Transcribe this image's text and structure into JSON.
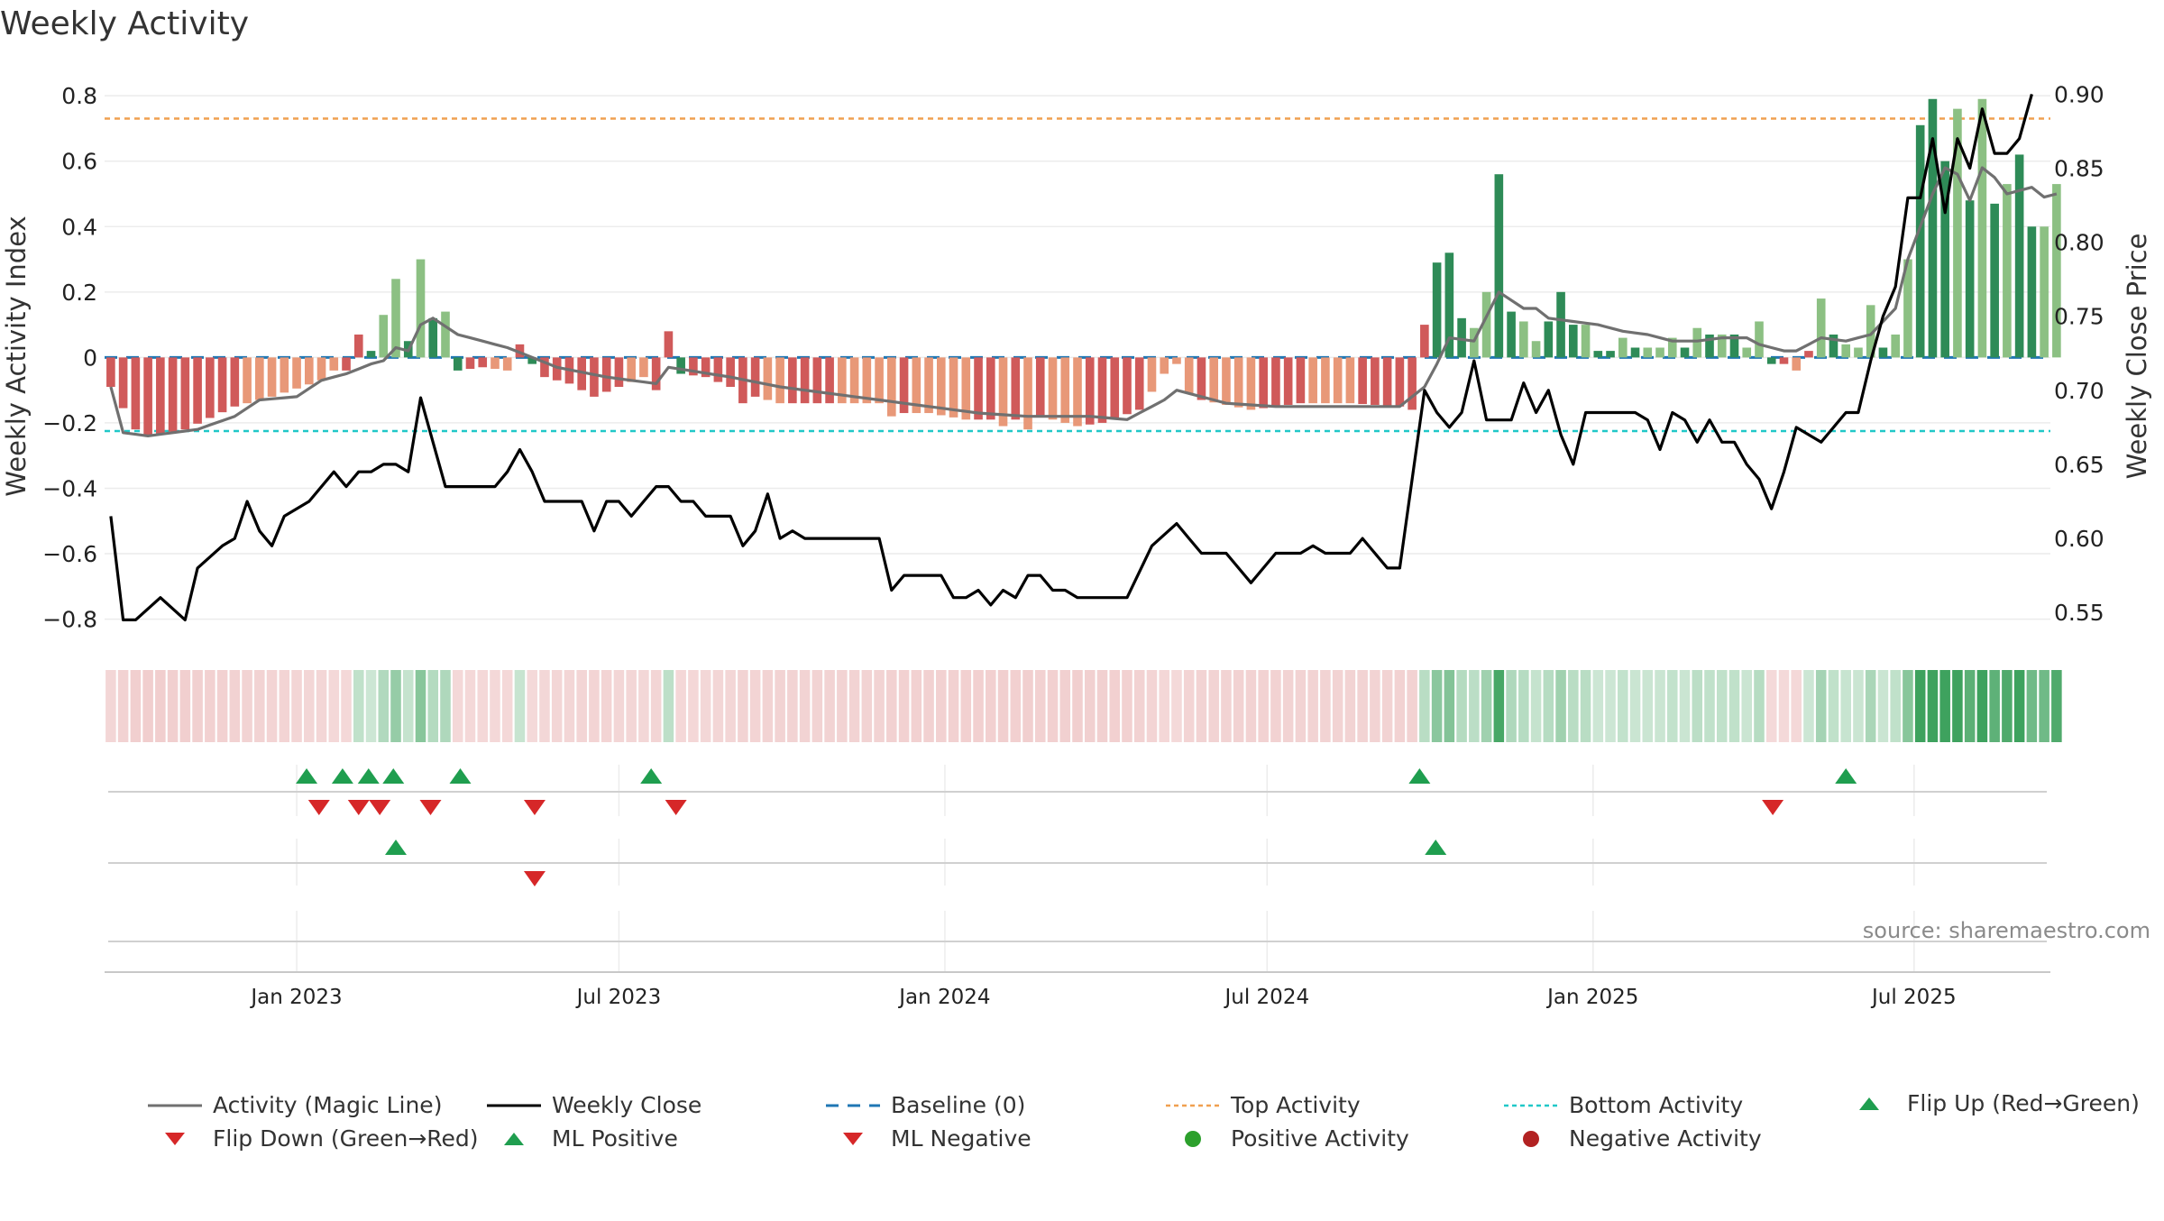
{
  "chart_data": {
    "type": "bar",
    "title": "Weekly Activity",
    "source_note": "source: sharemaestro.com",
    "left_axis": {
      "label": "Weekly Activity Index",
      "ylim": [
        -0.87,
        0.85
      ],
      "ticks": [
        0.8,
        0.6,
        0.4,
        0.2,
        0,
        -0.2,
        -0.4,
        -0.6,
        -0.8
      ],
      "tick_labels": [
        "0.8",
        "0.6",
        "0.4",
        "0.2",
        "0",
        "−0.2",
        "−0.4",
        "−0.6",
        "−0.8"
      ]
    },
    "right_axis": {
      "label": "Weekly Close Price",
      "ylim": [
        0.53,
        0.91
      ],
      "ticks": [
        0.9,
        0.85,
        0.8,
        0.75,
        0.7,
        0.65,
        0.6,
        0.55
      ],
      "tick_labels": [
        "0.90",
        "0.85",
        "0.80",
        "0.75",
        "0.70",
        "0.65",
        "0.60",
        "0.55"
      ]
    },
    "x_axis": {
      "tick_labels": [
        "Jan 2023",
        "Jul 2023",
        "Jan 2024",
        "Jul 2024",
        "Jan 2025",
        "Jul 2025"
      ],
      "tick_weeks": [
        15,
        41,
        67.3,
        93.3,
        119.6,
        145.5
      ],
      "n_weeks": 157
    },
    "thresholds": {
      "top_activity": 0.73,
      "bottom_activity": -0.225,
      "baseline": 0
    },
    "colors": {
      "strong_pos": "#2e8b57",
      "light_pos": "#8cc083",
      "strong_neg": "#d05a5a",
      "light_neg": "#e89878",
      "magic_line": "#707070",
      "close_line": "#000000",
      "baseline": "#1f77b4",
      "top_line": "#f0a050",
      "bottom_line": "#20c8c8",
      "marker_up": "#1f9e4f",
      "marker_down": "#d62728",
      "pos_dot": "#2ca02c",
      "neg_dot": "#b22222"
    },
    "activity_keys": [
      [
        0,
        -0.09,
        1
      ],
      [
        2,
        -0.22,
        1
      ],
      [
        3,
        -0.24,
        1
      ],
      [
        6,
        -0.22,
        1
      ],
      [
        10,
        -0.15,
        0
      ],
      [
        13,
        -0.12,
        0
      ],
      [
        17,
        -0.07,
        0
      ],
      [
        18,
        -0.04,
        1
      ],
      [
        19,
        -0.04,
        1
      ],
      [
        20,
        0.07,
        2
      ],
      [
        21,
        0.02,
        3
      ],
      [
        23,
        0.24,
        2
      ],
      [
        24,
        0.05,
        3
      ],
      [
        25,
        0.3,
        2
      ],
      [
        26,
        0.12,
        3
      ],
      [
        27,
        0.14,
        2
      ],
      [
        28,
        -0.04,
        1
      ],
      [
        30,
        -0.03,
        0
      ],
      [
        32,
        -0.04,
        1
      ],
      [
        33,
        0.04,
        2
      ],
      [
        34,
        -0.02,
        1
      ],
      [
        35,
        -0.06,
        1
      ],
      [
        37,
        -0.08,
        1
      ],
      [
        39,
        -0.12,
        1
      ],
      [
        41,
        -0.09,
        0
      ],
      [
        43,
        -0.06,
        1
      ],
      [
        44,
        -0.1,
        1
      ],
      [
        45,
        0.08,
        2
      ],
      [
        46,
        -0.05,
        1
      ],
      [
        48,
        -0.06,
        1
      ],
      [
        50,
        -0.09,
        1
      ],
      [
        51,
        -0.14,
        1
      ],
      [
        52,
        -0.12,
        0
      ],
      [
        54,
        -0.14,
        1
      ],
      [
        58,
        -0.14,
        0
      ],
      [
        62,
        -0.14,
        0
      ],
      [
        63,
        -0.18,
        1
      ],
      [
        64,
        -0.17,
        0
      ],
      [
        66,
        -0.17,
        0
      ],
      [
        69,
        -0.19,
        1
      ],
      [
        71,
        -0.19,
        0
      ],
      [
        72,
        -0.21,
        1
      ],
      [
        73,
        -0.19,
        0
      ],
      [
        74,
        -0.22,
        1
      ],
      [
        75,
        -0.18,
        0
      ],
      [
        78,
        -0.21,
        1
      ],
      [
        80,
        -0.2,
        1
      ],
      [
        83,
        -0.16,
        0
      ],
      [
        85,
        -0.05,
        0
      ],
      [
        86,
        -0.02,
        0
      ],
      [
        87,
        -0.11,
        1
      ],
      [
        88,
        -0.13,
        0
      ],
      [
        92,
        -0.16,
        1
      ],
      [
        96,
        -0.14,
        0
      ],
      [
        100,
        -0.14,
        1
      ],
      [
        104,
        -0.15,
        1
      ],
      [
        105,
        -0.16,
        1
      ],
      [
        106,
        0.1,
        2
      ],
      [
        107,
        0.29,
        2
      ],
      [
        108,
        0.32,
        2
      ],
      [
        109,
        0.12,
        3
      ],
      [
        110,
        0.09,
        3
      ],
      [
        111,
        0.2,
        2
      ],
      [
        112,
        0.56,
        2
      ],
      [
        113,
        0.14,
        3
      ],
      [
        114,
        0.11,
        3
      ],
      [
        115,
        0.05,
        2
      ],
      [
        116,
        0.11,
        2
      ],
      [
        117,
        0.2,
        2
      ],
      [
        118,
        0.1,
        3
      ],
      [
        119,
        0.1,
        2
      ],
      [
        120,
        0.02,
        2
      ],
      [
        121,
        0.02,
        3
      ],
      [
        122,
        0.06,
        2
      ],
      [
        123,
        0.03,
        3
      ],
      [
        125,
        0.03,
        3
      ],
      [
        126,
        0.06,
        2
      ],
      [
        127,
        0.03,
        3
      ],
      [
        128,
        0.09,
        2
      ],
      [
        129,
        0.07,
        3
      ],
      [
        130,
        0.07,
        2
      ],
      [
        131,
        0.07,
        3
      ],
      [
        132,
        0.03,
        3
      ],
      [
        133,
        0.11,
        2
      ],
      [
        134,
        -0.02,
        1
      ],
      [
        135,
        -0.02,
        0
      ],
      [
        136,
        -0.04,
        1
      ],
      [
        137,
        0.02,
        3
      ],
      [
        138,
        0.18,
        2
      ],
      [
        139,
        0.07,
        3
      ],
      [
        140,
        0.04,
        3
      ],
      [
        141,
        0.03,
        3
      ],
      [
        142,
        0.16,
        2
      ],
      [
        143,
        0.03,
        3
      ],
      [
        144,
        0.07,
        3
      ],
      [
        145,
        0.3,
        2
      ],
      [
        146,
        0.71,
        2
      ],
      [
        147,
        0.79,
        2
      ],
      [
        148,
        0.6,
        3
      ],
      [
        149,
        0.76,
        2
      ],
      [
        150,
        0.48,
        3
      ],
      [
        151,
        0.79,
        2
      ],
      [
        152,
        0.47,
        3
      ],
      [
        153,
        0.53,
        2
      ],
      [
        154,
        0.62,
        2
      ],
      [
        155,
        0.4,
        3
      ],
      [
        156,
        0.4,
        3
      ],
      [
        157,
        0.53,
        2
      ]
    ],
    "magic_keys": [
      [
        0,
        -0.09
      ],
      [
        1,
        -0.23
      ],
      [
        3,
        -0.24
      ],
      [
        7,
        -0.22
      ],
      [
        10,
        -0.18
      ],
      [
        12,
        -0.13
      ],
      [
        15,
        -0.12
      ],
      [
        17,
        -0.07
      ],
      [
        19,
        -0.05
      ],
      [
        21,
        -0.02
      ],
      [
        22,
        -0.01
      ],
      [
        23,
        0.03
      ],
      [
        24,
        0.02
      ],
      [
        25,
        0.1
      ],
      [
        26,
        0.12
      ],
      [
        28,
        0.07
      ],
      [
        30,
        0.05
      ],
      [
        32,
        0.03
      ],
      [
        34,
        0.0
      ],
      [
        36,
        -0.03
      ],
      [
        40,
        -0.06
      ],
      [
        44,
        -0.08
      ],
      [
        45,
        -0.03
      ],
      [
        50,
        -0.06
      ],
      [
        54,
        -0.09
      ],
      [
        58,
        -0.11
      ],
      [
        62,
        -0.13
      ],
      [
        66,
        -0.15
      ],
      [
        70,
        -0.17
      ],
      [
        74,
        -0.18
      ],
      [
        79,
        -0.18
      ],
      [
        82,
        -0.19
      ],
      [
        85,
        -0.13
      ],
      [
        86,
        -0.1
      ],
      [
        90,
        -0.14
      ],
      [
        94,
        -0.15
      ],
      [
        98,
        -0.15
      ],
      [
        104,
        -0.15
      ],
      [
        106,
        -0.09
      ],
      [
        107,
        -0.02
      ],
      [
        108,
        0.06
      ],
      [
        110,
        0.05
      ],
      [
        112,
        0.2
      ],
      [
        114,
        0.15
      ],
      [
        115,
        0.15
      ],
      [
        116,
        0.12
      ],
      [
        118,
        0.11
      ],
      [
        120,
        0.1
      ],
      [
        122,
        0.08
      ],
      [
        124,
        0.07
      ],
      [
        126,
        0.05
      ],
      [
        128,
        0.05
      ],
      [
        130,
        0.06
      ],
      [
        132,
        0.06
      ],
      [
        133,
        0.04
      ],
      [
        135,
        0.02
      ],
      [
        136,
        0.02
      ],
      [
        138,
        0.06
      ],
      [
        140,
        0.05
      ],
      [
        142,
        0.07
      ],
      [
        144,
        0.15
      ],
      [
        145,
        0.3
      ],
      [
        146,
        0.4
      ],
      [
        147,
        0.5
      ],
      [
        148,
        0.58
      ],
      [
        149,
        0.56
      ],
      [
        150,
        0.48
      ],
      [
        151,
        0.58
      ],
      [
        152,
        0.55
      ],
      [
        153,
        0.5
      ],
      [
        155,
        0.52
      ],
      [
        156,
        0.49
      ],
      [
        157,
        0.5
      ]
    ],
    "close_keys": [
      [
        0,
        0.615
      ],
      [
        1,
        0.545
      ],
      [
        2,
        0.545
      ],
      [
        4,
        0.56
      ],
      [
        6,
        0.545
      ],
      [
        7,
        0.58
      ],
      [
        9,
        0.595
      ],
      [
        10,
        0.6
      ],
      [
        11,
        0.625
      ],
      [
        12,
        0.605
      ],
      [
        13,
        0.595
      ],
      [
        14,
        0.615
      ],
      [
        16,
        0.625
      ],
      [
        18,
        0.645
      ],
      [
        19,
        0.635
      ],
      [
        20,
        0.645
      ],
      [
        21,
        0.645
      ],
      [
        22,
        0.65
      ],
      [
        23,
        0.65
      ],
      [
        24,
        0.645
      ],
      [
        25,
        0.695
      ],
      [
        26,
        0.665
      ],
      [
        27,
        0.635
      ],
      [
        31,
        0.635
      ],
      [
        32,
        0.645
      ],
      [
        33,
        0.66
      ],
      [
        34,
        0.645
      ],
      [
        35,
        0.625
      ],
      [
        38,
        0.625
      ],
      [
        39,
        0.605
      ],
      [
        40,
        0.625
      ],
      [
        41,
        0.625
      ],
      [
        42,
        0.615
      ],
      [
        43,
        0.625
      ],
      [
        44,
        0.635
      ],
      [
        45,
        0.635
      ],
      [
        46,
        0.625
      ],
      [
        47,
        0.625
      ],
      [
        48,
        0.615
      ],
      [
        50,
        0.615
      ],
      [
        51,
        0.595
      ],
      [
        52,
        0.605
      ],
      [
        53,
        0.63
      ],
      [
        54,
        0.6
      ],
      [
        55,
        0.605
      ],
      [
        56,
        0.6
      ],
      [
        62,
        0.6
      ],
      [
        63,
        0.565
      ],
      [
        64,
        0.575
      ],
      [
        67,
        0.575
      ],
      [
        68,
        0.56
      ],
      [
        69,
        0.56
      ],
      [
        70,
        0.565
      ],
      [
        71,
        0.555
      ],
      [
        72,
        0.565
      ],
      [
        73,
        0.56
      ],
      [
        74,
        0.575
      ],
      [
        75,
        0.575
      ],
      [
        76,
        0.565
      ],
      [
        77,
        0.565
      ],
      [
        78,
        0.56
      ],
      [
        82,
        0.56
      ],
      [
        84,
        0.595
      ],
      [
        86,
        0.61
      ],
      [
        87,
        0.6
      ],
      [
        88,
        0.59
      ],
      [
        90,
        0.59
      ],
      [
        92,
        0.57
      ],
      [
        94,
        0.59
      ],
      [
        96,
        0.59
      ],
      [
        97,
        0.595
      ],
      [
        98,
        0.59
      ],
      [
        100,
        0.59
      ],
      [
        101,
        0.6
      ],
      [
        103,
        0.58
      ],
      [
        104,
        0.58
      ],
      [
        106,
        0.7
      ],
      [
        107,
        0.685
      ],
      [
        108,
        0.675
      ],
      [
        109,
        0.685
      ],
      [
        110,
        0.72
      ],
      [
        111,
        0.68
      ],
      [
        113,
        0.68
      ],
      [
        114,
        0.705
      ],
      [
        115,
        0.685
      ],
      [
        116,
        0.7
      ],
      [
        117,
        0.67
      ],
      [
        118,
        0.65
      ],
      [
        119,
        0.685
      ],
      [
        120,
        0.685
      ],
      [
        123,
        0.685
      ],
      [
        124,
        0.68
      ],
      [
        125,
        0.66
      ],
      [
        126,
        0.685
      ],
      [
        127,
        0.68
      ],
      [
        128,
        0.665
      ],
      [
        129,
        0.68
      ],
      [
        130,
        0.665
      ],
      [
        131,
        0.665
      ],
      [
        132,
        0.65
      ],
      [
        133,
        0.64
      ],
      [
        134,
        0.62
      ],
      [
        135,
        0.645
      ],
      [
        136,
        0.675
      ],
      [
        137,
        0.67
      ],
      [
        138,
        0.665
      ],
      [
        140,
        0.685
      ],
      [
        141,
        0.685
      ],
      [
        142,
        0.72
      ],
      [
        143,
        0.75
      ],
      [
        144,
        0.77
      ],
      [
        145,
        0.83
      ],
      [
        146,
        0.83
      ],
      [
        147,
        0.87
      ],
      [
        148,
        0.82
      ],
      [
        149,
        0.87
      ],
      [
        150,
        0.85
      ],
      [
        151,
        0.89
      ],
      [
        152,
        0.86
      ],
      [
        153,
        0.86
      ],
      [
        154,
        0.87
      ],
      [
        155,
        0.9
      ]
    ],
    "ml_positive_weeks": [
      15.8,
      18.7,
      20.8,
      22.8,
      28.2,
      43.6,
      105.6,
      140.0
    ],
    "ml_negative_weeks": [
      16.8,
      20.0,
      21.7,
      25.8,
      34.2,
      45.6,
      134.1
    ],
    "flip_up_weeks": [
      23.0,
      106.9
    ],
    "flip_down_weeks": [
      34.2
    ],
    "legend": {
      "magic_line": "Activity (Magic Line)",
      "weekly_close": "Weekly Close",
      "baseline": "Baseline (0)",
      "top_activity": "Top Activity",
      "bottom_activity": "Bottom Activity",
      "flip_up": "Flip Up (Red→Green)",
      "flip_down": "Flip Down (Green→Red)",
      "ml_positive": "ML Positive",
      "ml_negative": "ML Negative",
      "positive_activity": "Positive Activity",
      "negative_activity": "Negative Activity"
    }
  }
}
